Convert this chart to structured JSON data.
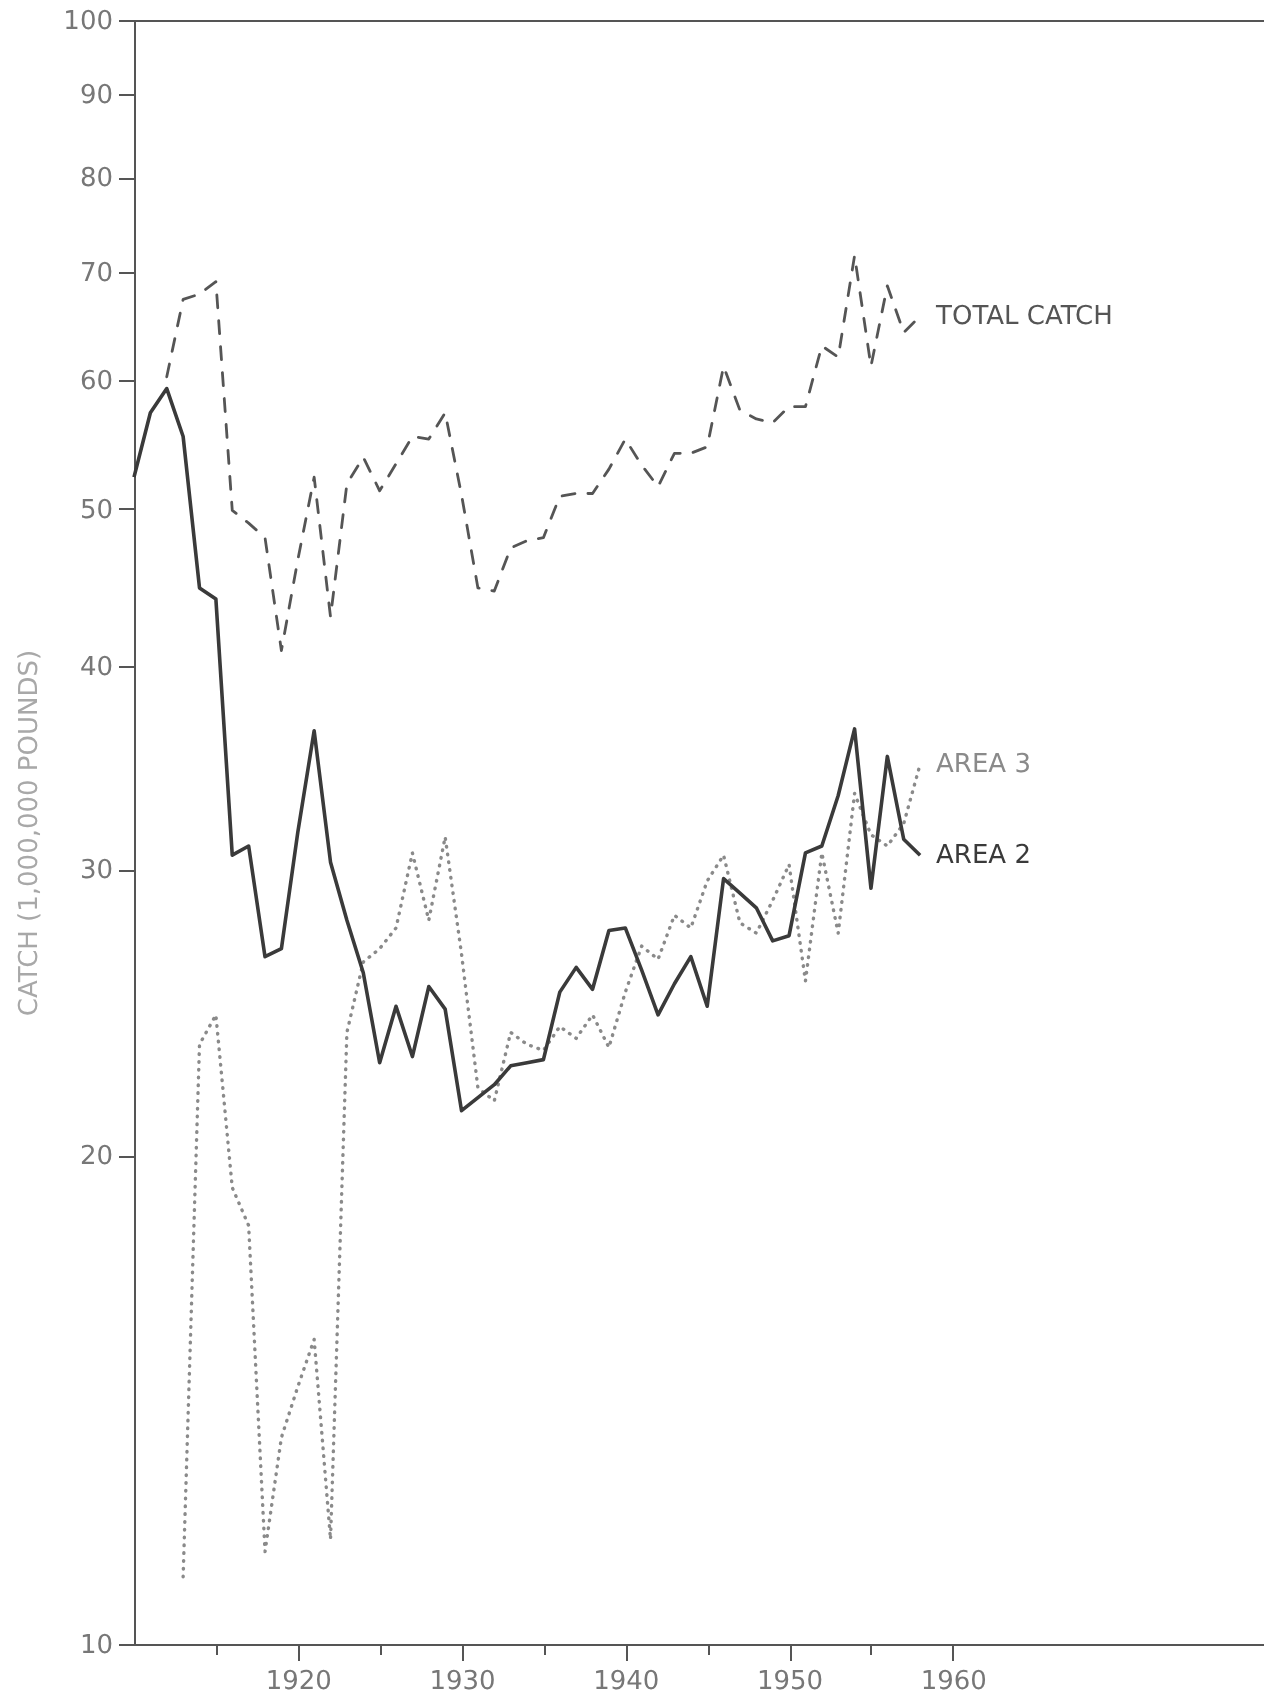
{
  "chart_data": {
    "type": "line",
    "ylabel": "CATCH (1,000,000 POUNDS)",
    "x": [
      1910,
      1911,
      1912,
      1913,
      1914,
      1915,
      1916,
      1917,
      1918,
      1919,
      1920,
      1921,
      1922,
      1923,
      1924,
      1925,
      1926,
      1927,
      1928,
      1929,
      1930,
      1931,
      1932,
      1933,
      1934,
      1935,
      1936,
      1937,
      1938,
      1939,
      1940,
      1941,
      1942,
      1943,
      1944,
      1945,
      1946,
      1947,
      1948,
      1949,
      1950,
      1951,
      1952,
      1953,
      1954,
      1955,
      1956,
      1957,
      1958
    ],
    "series": [
      {
        "name": "TOTAL CATCH",
        "color": "#555555",
        "line_style": "dashed",
        "values": [
          null,
          null,
          60.3,
          67.3,
          67.8,
          69.0,
          49.9,
          49.0,
          48.0,
          40.9,
          46.5,
          52.3,
          42.9,
          51.8,
          53.8,
          51.3,
          53.3,
          55.4,
          55.2,
          57.3,
          51.0,
          44.7,
          44.5,
          47.3,
          47.8,
          48.0,
          50.9,
          51.1,
          51.1,
          52.9,
          55.2,
          53.2,
          51.6,
          54.1,
          54.1,
          54.6,
          61.2,
          57.5,
          56.8,
          56.5,
          57.8,
          57.8,
          63.0,
          62.0,
          71.6,
          61.2,
          68.6,
          64.2,
          65.7
        ]
      },
      {
        "name": "AREA 3",
        "color": "#8a8a8a",
        "line_style": "dotted",
        "values": [
          null,
          null,
          null,
          11.0,
          23.4,
          24.4,
          19.1,
          18.1,
          11.4,
          13.4,
          14.4,
          15.4,
          11.6,
          23.8,
          26.3,
          26.8,
          27.6,
          30.7,
          27.9,
          31.4,
          26.6,
          22.0,
          21.6,
          23.8,
          23.4,
          23.2,
          24.0,
          23.6,
          24.4,
          23.3,
          25.2,
          26.9,
          26.4,
          28.1,
          27.6,
          29.5,
          30.6,
          27.8,
          27.4,
          28.7,
          30.2,
          25.6,
          30.7,
          27.4,
          33.4,
          31.5,
          31.0,
          32.0,
          34.8
        ]
      },
      {
        "name": "AREA 2",
        "color": "#3a3a3a",
        "line_style": "solid",
        "values": [
          52.3,
          57.3,
          59.3,
          55.4,
          44.7,
          44.0,
          30.6,
          31.0,
          26.5,
          26.8,
          31.6,
          36.5,
          30.3,
          27.9,
          25.9,
          22.8,
          24.7,
          23.0,
          25.4,
          24.6,
          21.3,
          21.7,
          22.1,
          22.7,
          22.8,
          22.9,
          25.2,
          26.1,
          25.3,
          27.5,
          27.6,
          26.0,
          24.4,
          25.5,
          26.5,
          24.7,
          29.6,
          29.0,
          28.4,
          27.1,
          27.3,
          30.7,
          31.0,
          33.3,
          36.6,
          29.2,
          35.2,
          31.3,
          30.6
        ]
      }
    ],
    "xlim": [
      1910,
      1979
    ],
    "ylim": [
      10,
      100
    ],
    "xticks": [
      {
        "value": 1915,
        "label": null
      },
      1920,
      {
        "value": 1925,
        "label": null
      },
      1930,
      {
        "value": 1935,
        "label": null
      },
      1940,
      {
        "value": 1945,
        "label": null
      },
      1950,
      {
        "value": 1955,
        "label": null
      },
      1960
    ],
    "yticks": [
      10,
      20,
      30,
      40,
      50,
      60,
      70,
      80,
      90,
      100
    ],
    "log": true
  }
}
